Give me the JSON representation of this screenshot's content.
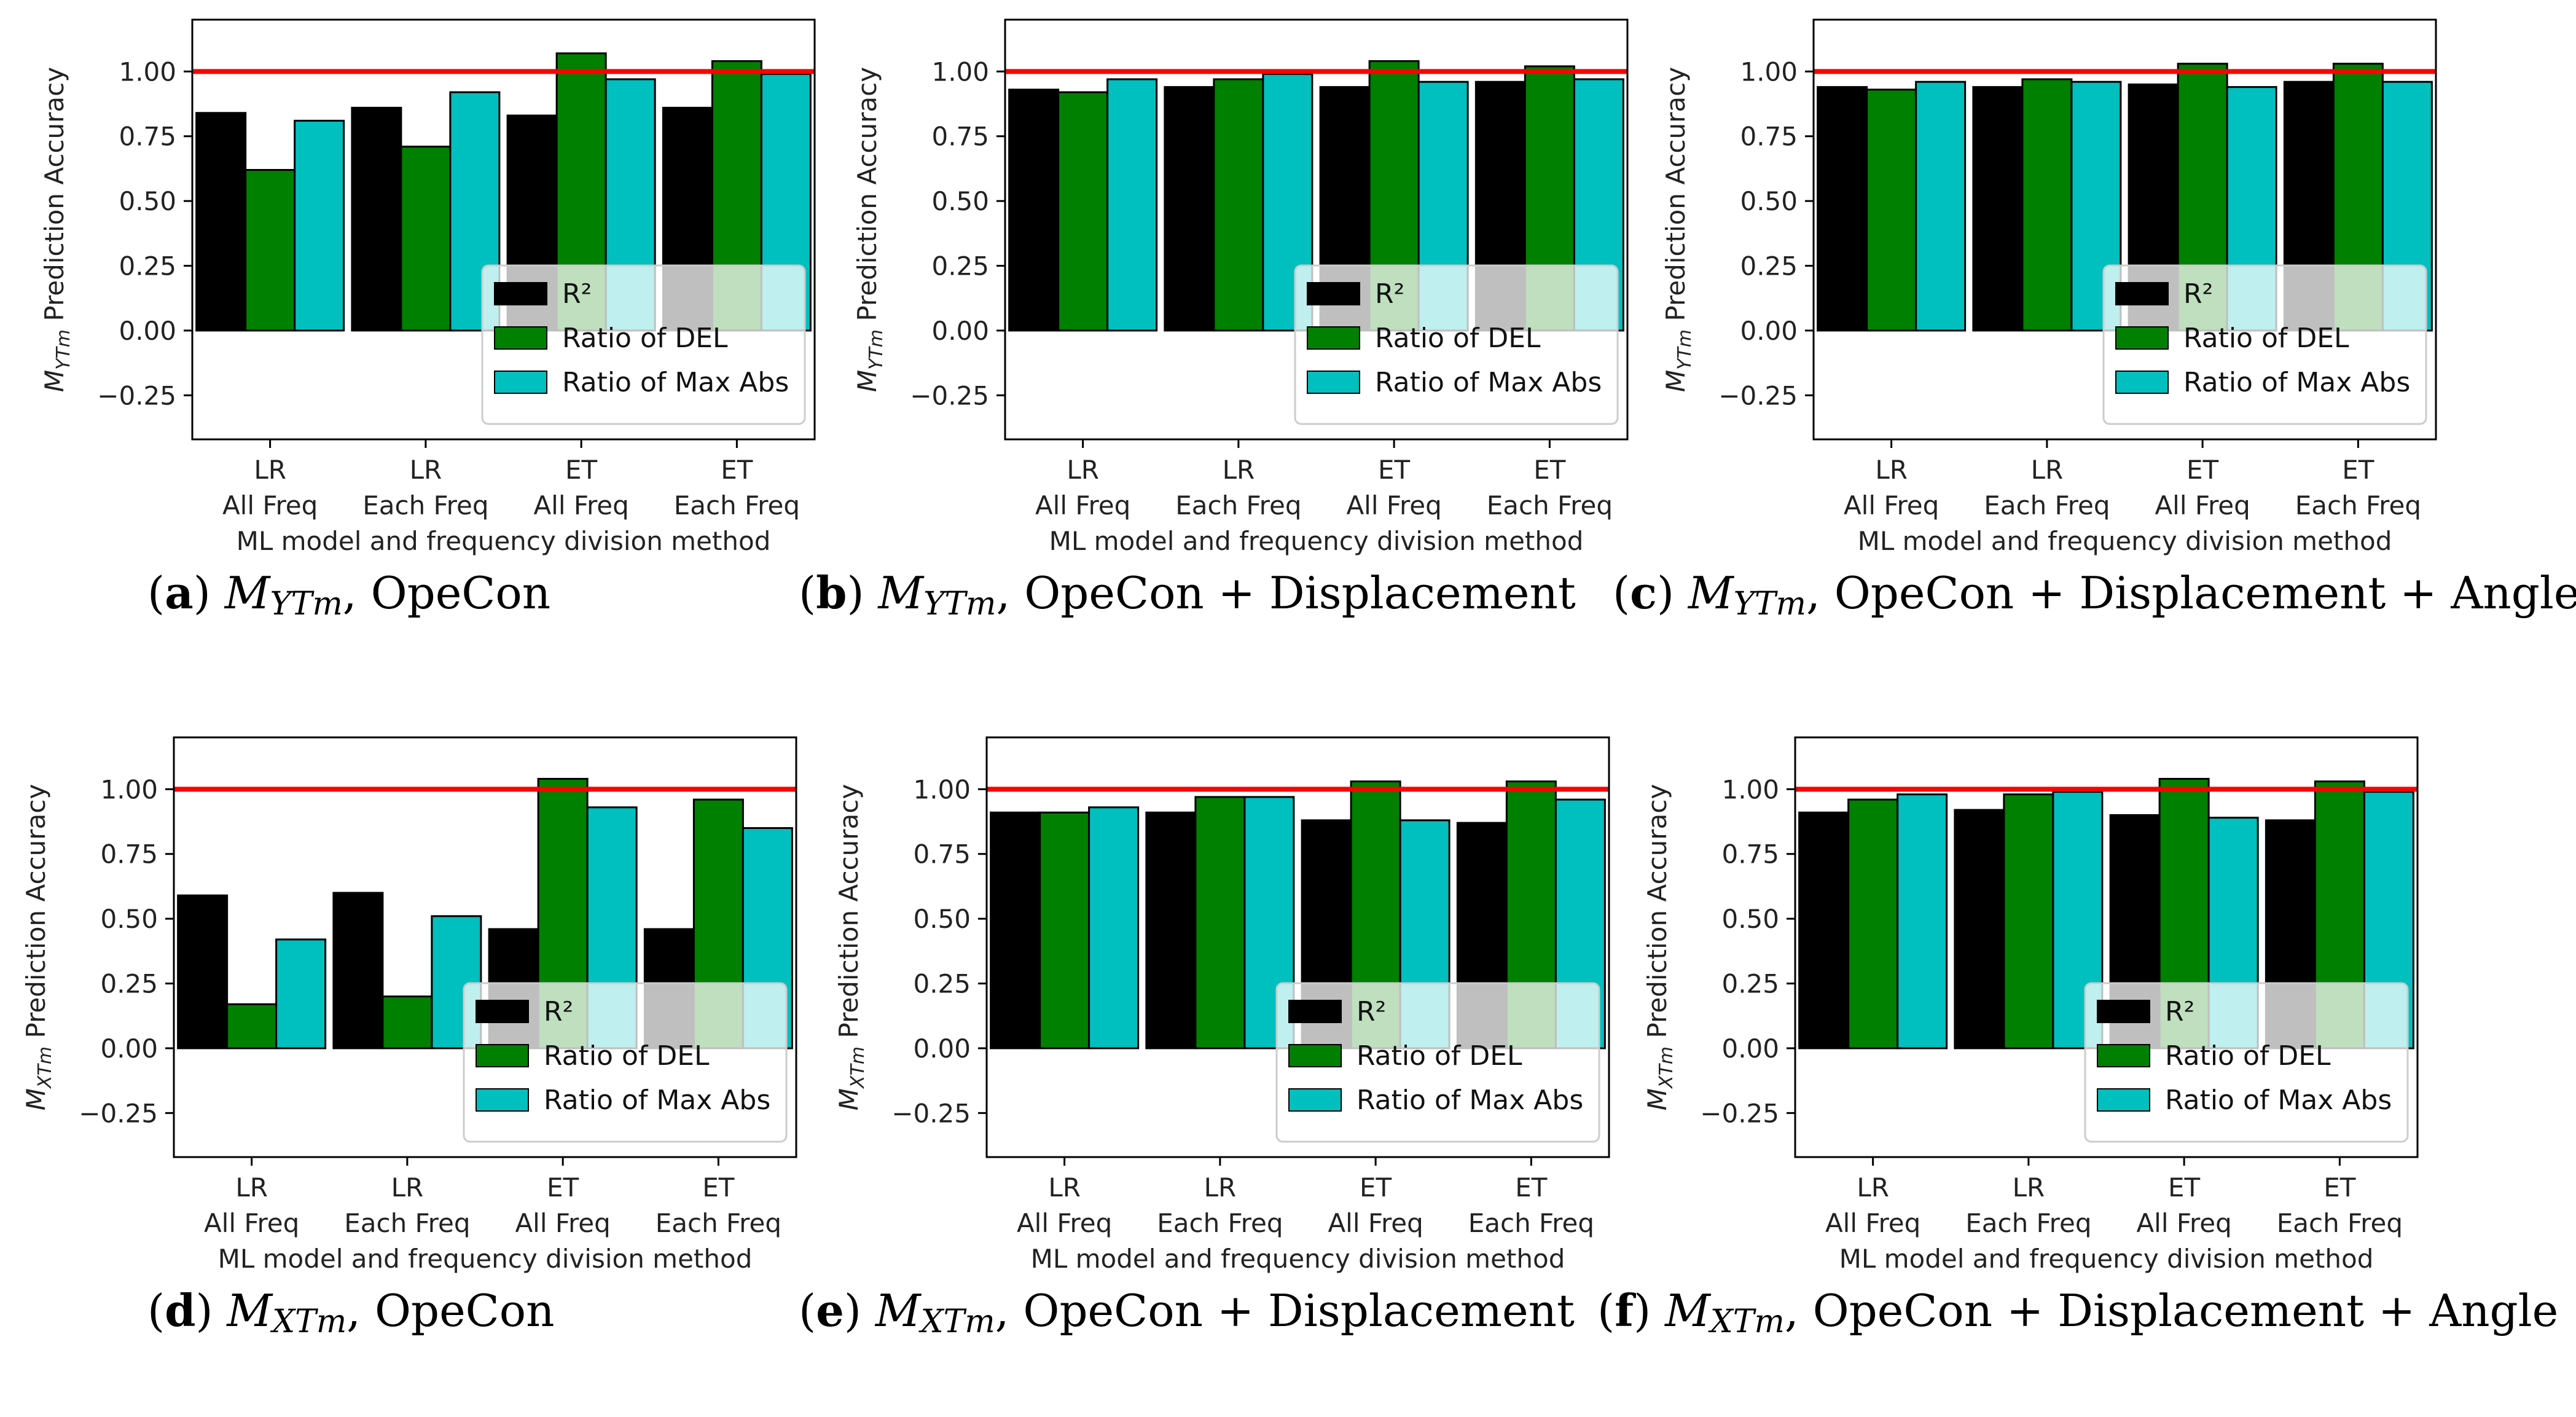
{
  "colors": {
    "r2": "#000000",
    "del": "#008000",
    "maxabs": "#00bfbf",
    "reference_line": "#ff0000",
    "legend_box_bg": "#ffffff"
  },
  "shared": {
    "categories": [
      [
        "LR",
        "All Freq"
      ],
      [
        "LR",
        "Each Freq"
      ],
      [
        "ET",
        "All Freq"
      ],
      [
        "ET",
        "Each Freq"
      ]
    ],
    "xlabel": "ML model and frequency division method",
    "yticks": [
      "−0.25",
      "0.00",
      "0.25",
      "0.50",
      "0.75",
      "1.00"
    ],
    "ylabel_suffix": "Prediction Accuracy",
    "legend": [
      "R²",
      "Ratio of DEL",
      "Ratio of Max Abs"
    ],
    "reference_value": 1.0
  },
  "chart_data": [
    {
      "type": "bar",
      "panel": "a",
      "ylabel": "M_YTm Prediction Accuracy",
      "ylim": [
        -0.42,
        1.2
      ],
      "categories": [
        "LR All Freq",
        "LR Each Freq",
        "ET All Freq",
        "ET Each Freq"
      ],
      "series": [
        {
          "name": "R²",
          "values": [
            0.84,
            0.86,
            0.83,
            0.86
          ]
        },
        {
          "name": "Ratio of DEL",
          "values": [
            0.62,
            0.71,
            1.07,
            1.04
          ]
        },
        {
          "name": "Ratio of Max Abs",
          "values": [
            0.81,
            0.92,
            0.97,
            0.99
          ]
        }
      ],
      "reference_line": 1.0,
      "caption": {
        "label": "a",
        "var": "M",
        "sub": "YTm",
        "text": ", OpeCon"
      }
    },
    {
      "type": "bar",
      "panel": "b",
      "ylabel": "M_YTm Prediction Accuracy",
      "ylim": [
        -0.42,
        1.2
      ],
      "categories": [
        "LR All Freq",
        "LR Each Freq",
        "ET All Freq",
        "ET Each Freq"
      ],
      "series": [
        {
          "name": "R²",
          "values": [
            0.93,
            0.94,
            0.94,
            0.96
          ]
        },
        {
          "name": "Ratio of DEL",
          "values": [
            0.92,
            0.97,
            1.04,
            1.02
          ]
        },
        {
          "name": "Ratio of Max Abs",
          "values": [
            0.97,
            0.99,
            0.96,
            0.97
          ]
        }
      ],
      "reference_line": 1.0,
      "caption": {
        "label": "b",
        "var": "M",
        "sub": "YTm",
        "text": ", OpeCon + Displacement"
      }
    },
    {
      "type": "bar",
      "panel": "c",
      "ylabel": "M_YTm Prediction Accuracy",
      "ylim": [
        -0.42,
        1.2
      ],
      "categories": [
        "LR All Freq",
        "LR Each Freq",
        "ET All Freq",
        "ET Each Freq"
      ],
      "series": [
        {
          "name": "R²",
          "values": [
            0.94,
            0.94,
            0.95,
            0.96
          ]
        },
        {
          "name": "Ratio of DEL",
          "values": [
            0.93,
            0.97,
            1.03,
            1.03
          ]
        },
        {
          "name": "Ratio of Max Abs",
          "values": [
            0.96,
            0.96,
            0.94,
            0.96
          ]
        }
      ],
      "reference_line": 1.0,
      "caption": {
        "label": "c",
        "var": "M",
        "sub": "YTm",
        "text": ", OpeCon + Displacement + Angle"
      }
    },
    {
      "type": "bar",
      "panel": "d",
      "ylabel": "M_XTm Prediction Accuracy",
      "ylim": [
        -0.42,
        1.2
      ],
      "categories": [
        "LR All Freq",
        "LR Each Freq",
        "ET All Freq",
        "ET Each Freq"
      ],
      "series": [
        {
          "name": "R²",
          "values": [
            0.59,
            0.6,
            0.46,
            0.46
          ]
        },
        {
          "name": "Ratio of DEL",
          "values": [
            0.17,
            0.2,
            1.04,
            0.96
          ]
        },
        {
          "name": "Ratio of Max Abs",
          "values": [
            0.42,
            0.51,
            0.93,
            0.85
          ]
        }
      ],
      "reference_line": 1.0,
      "caption": {
        "label": "d",
        "var": "M",
        "sub": "XTm",
        "text": ", OpeCon"
      }
    },
    {
      "type": "bar",
      "panel": "e",
      "ylabel": "M_XTm Prediction Accuracy",
      "ylim": [
        -0.42,
        1.2
      ],
      "categories": [
        "LR All Freq",
        "LR Each Freq",
        "ET All Freq",
        "ET Each Freq"
      ],
      "series": [
        {
          "name": "R²",
          "values": [
            0.91,
            0.91,
            0.88,
            0.87
          ]
        },
        {
          "name": "Ratio of DEL",
          "values": [
            0.91,
            0.97,
            1.03,
            1.03
          ]
        },
        {
          "name": "Ratio of Max Abs",
          "values": [
            0.93,
            0.97,
            0.88,
            0.96
          ]
        }
      ],
      "reference_line": 1.0,
      "caption": {
        "label": "e",
        "var": "M",
        "sub": "XTm",
        "text": ", OpeCon + Displacement"
      }
    },
    {
      "type": "bar",
      "panel": "f",
      "ylabel": "M_XTm Prediction Accuracy",
      "ylim": [
        -0.42,
        1.2
      ],
      "categories": [
        "LR All Freq",
        "LR Each Freq",
        "ET All Freq",
        "ET Each Freq"
      ],
      "series": [
        {
          "name": "R²",
          "values": [
            0.91,
            0.92,
            0.9,
            0.88
          ]
        },
        {
          "name": "Ratio of DEL",
          "values": [
            0.96,
            0.98,
            1.04,
            1.03
          ]
        },
        {
          "name": "Ratio of Max Abs",
          "values": [
            0.98,
            0.99,
            0.89,
            0.99
          ]
        }
      ],
      "reference_line": 1.0,
      "caption": {
        "label": "f",
        "var": "M",
        "sub": "XTm",
        "text": ", OpeCon + Displacement + Angle"
      }
    }
  ]
}
